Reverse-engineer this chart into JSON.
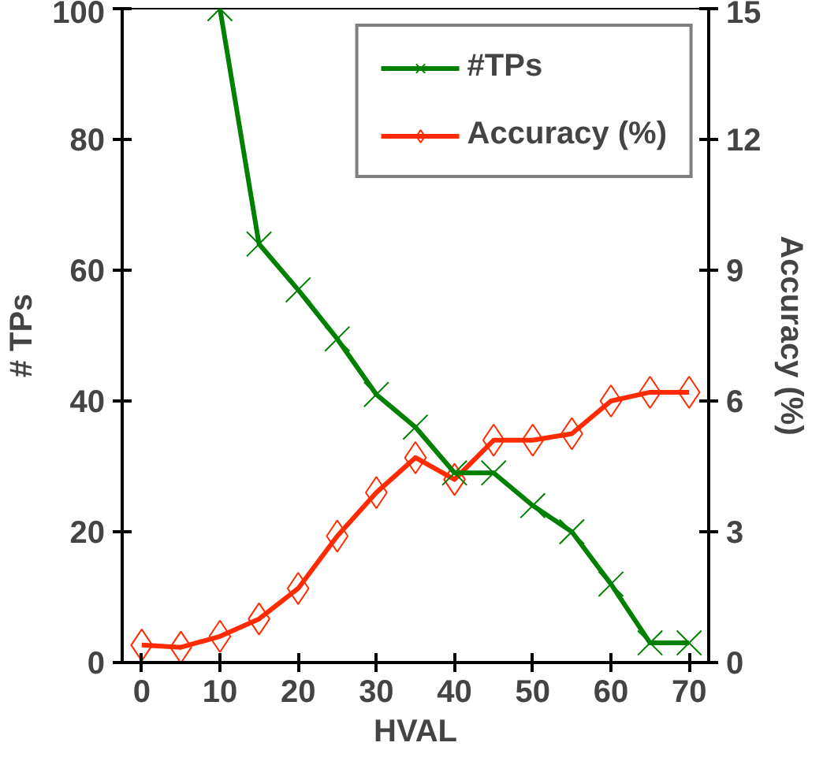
{
  "chart_data": {
    "type": "line",
    "xlabel": "HVAL",
    "ylabel": "# TPs",
    "y2label": "Accuracy (%)",
    "x": [
      0,
      5,
      10,
      15,
      20,
      25,
      30,
      35,
      40,
      45,
      50,
      55,
      60,
      65,
      70
    ],
    "series": [
      {
        "name": "#TPs",
        "color": "#008000",
        "marker": "cross",
        "values": [
          null,
          null,
          100,
          64,
          57,
          49.5,
          41,
          36,
          29,
          29,
          24,
          20,
          12,
          3,
          3
        ]
      },
      {
        "name": "Accuracy (%)",
        "color": "#ff2a00",
        "marker": "diamond",
        "axis": "y2",
        "values": [
          0.4,
          0.35,
          0.6,
          1.0,
          1.7,
          2.9,
          3.9,
          4.7,
          4.2,
          5.1,
          5.1,
          5.25,
          6.0,
          6.2,
          6.2
        ]
      }
    ],
    "xlim": [
      -2.5,
      72.5
    ],
    "xticks": [
      0,
      10,
      20,
      30,
      40,
      50,
      60,
      70
    ],
    "ylim": [
      0,
      100
    ],
    "yticks": [
      0,
      20,
      40,
      60,
      80,
      100
    ],
    "y2lim": [
      0,
      15
    ],
    "y2ticks": [
      0,
      3,
      6,
      9,
      12,
      15
    ],
    "grid": false,
    "legend": "top right"
  }
}
